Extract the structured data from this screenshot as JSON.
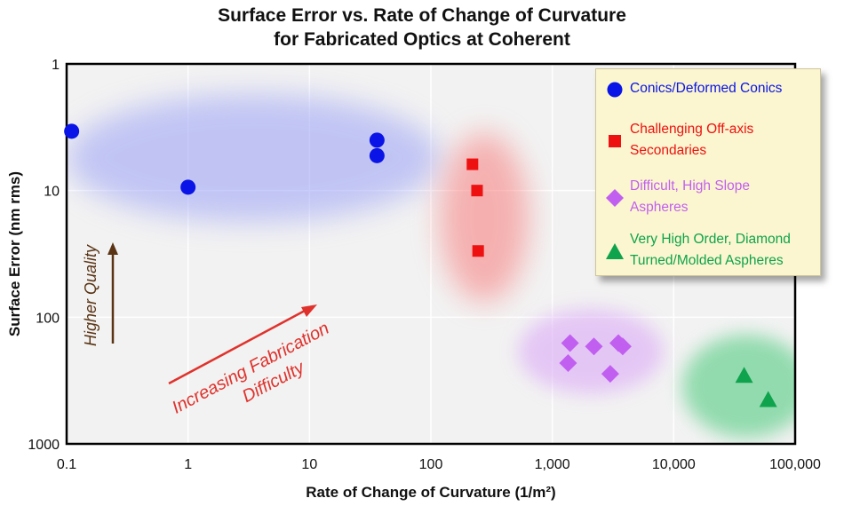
{
  "chart_data": {
    "type": "scatter",
    "title_lines": [
      "Surface Error vs. Rate of Change of Curvature",
      "for Fabricated Optics at Coherent"
    ],
    "xlabel": "Rate of Change of Curvature (1/m²)",
    "ylabel": "Surface Error (nm rms)",
    "x_scale": "log",
    "y_scale": "log",
    "y_inverted": true,
    "xlim": [
      0.1,
      100000
    ],
    "ylim": [
      1,
      1000
    ],
    "x_ticks": [
      0.1,
      1,
      10,
      100,
      1000,
      10000,
      100000
    ],
    "x_tick_labels": [
      "0.1",
      "1",
      "10",
      "100",
      "1,000",
      "10,000",
      "100,000"
    ],
    "y_ticks": [
      1,
      10,
      100,
      1000
    ],
    "y_tick_labels": [
      "1",
      "10",
      "100",
      "1000"
    ],
    "grid": true,
    "legend_position": "top-right",
    "series": [
      {
        "name": "Conics/Deformed Conics",
        "marker": "circle",
        "color": "#0a14e6",
        "points": [
          {
            "x": 0.11,
            "y": 3.4
          },
          {
            "x": 1,
            "y": 9.4
          },
          {
            "x": 36,
            "y": 4.0
          },
          {
            "x": 36,
            "y": 5.3
          }
        ]
      },
      {
        "name": "Challenging Off-axis Secondaries",
        "marker": "square",
        "color": "#ee1111",
        "points": [
          {
            "x": 220,
            "y": 6.2
          },
          {
            "x": 240,
            "y": 10
          },
          {
            "x": 245,
            "y": 30
          }
        ]
      },
      {
        "name": "Difficult, High Slope Aspheres",
        "marker": "diamond",
        "color": "#c15ff0",
        "points": [
          {
            "x": 1400,
            "y": 160
          },
          {
            "x": 1350,
            "y": 230
          },
          {
            "x": 2200,
            "y": 170
          },
          {
            "x": 3000,
            "y": 280
          },
          {
            "x": 3500,
            "y": 160
          },
          {
            "x": 3800,
            "y": 170
          }
        ]
      },
      {
        "name": "Very High Order, Diamond Turned/Molded Aspheres",
        "marker": "triangle",
        "color": "#0ea34c",
        "points": [
          {
            "x": 38000,
            "y": 290
          },
          {
            "x": 60000,
            "y": 450
          }
        ]
      }
    ],
    "annotations": [
      {
        "text": "Higher Quality",
        "color": "#5a3414"
      },
      {
        "text_lines": [
          "Increasing Fabrication",
          "Difficulty"
        ],
        "color": "#e0322c"
      }
    ]
  },
  "legend": {
    "items": [
      {
        "lines": [
          "Conics/Deformed Conics"
        ],
        "color": "#0a14e6"
      },
      {
        "lines": [
          "Challenging Off-axis",
          "Secondaries"
        ],
        "color": "#ee1111"
      },
      {
        "lines": [
          "Difficult, High Slope",
          "Aspheres"
        ],
        "color": "#c15ff0"
      },
      {
        "lines": [
          "Very High Order, Diamond",
          "Turned/Molded Aspheres"
        ],
        "color": "#0ea34c"
      }
    ]
  }
}
